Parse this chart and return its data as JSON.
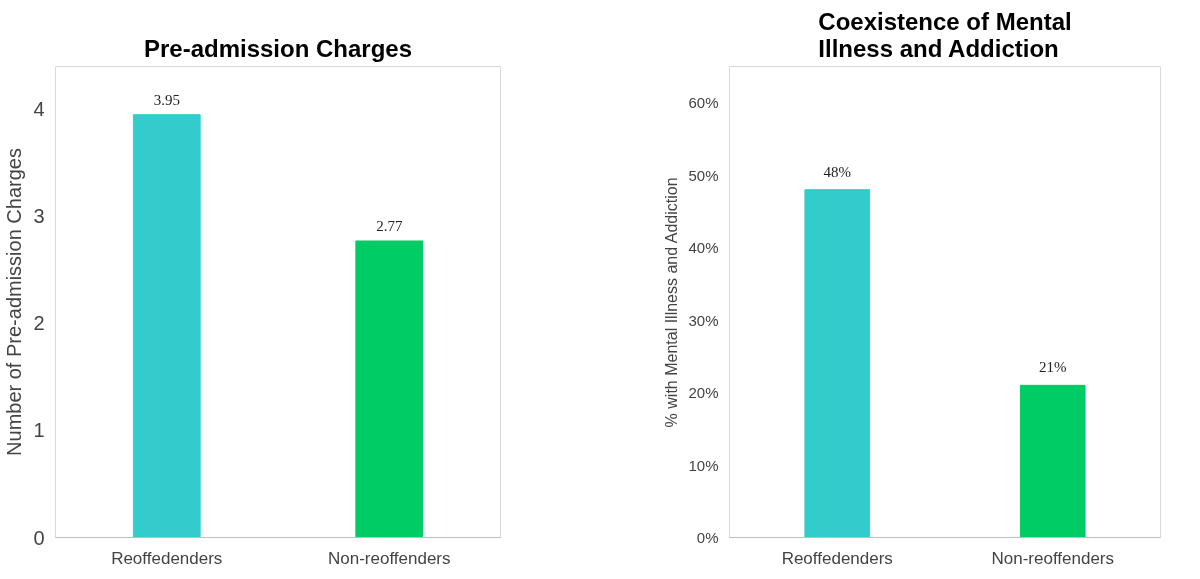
{
  "chart_data": [
    {
      "type": "bar",
      "title": "Pre-admission Charges",
      "ylabel": "Number of Pre-admission Charges",
      "categories": [
        "Reoffedenders",
        "Non-reoffenders"
      ],
      "series": [
        {
          "values": [
            3.95,
            2.77
          ],
          "colors": [
            "#33cccc",
            "#00cc66"
          ]
        }
      ],
      "ylim": [
        0,
        4.4
      ],
      "yticks": [
        0,
        1,
        2,
        3,
        4
      ],
      "grid": false,
      "data_labels": true
    },
    {
      "type": "bar",
      "title": "Coexistence of Mental Illness and Addiction",
      "ylabel": "% with Mental Illness and Addiction",
      "categories": [
        "Reoffedenders",
        "Non-reoffenders"
      ],
      "series": [
        {
          "values": [
            48,
            21
          ],
          "colors": [
            "#33cccc",
            "#00cc66"
          ],
          "value_labels": [
            "48%",
            "21%"
          ]
        }
      ],
      "ylim": [
        0,
        65
      ],
      "yticks": [
        {
          "value": 0,
          "label": "0%"
        },
        {
          "value": 10,
          "label": "10%"
        },
        {
          "value": 20,
          "label": "20%"
        },
        {
          "value": 30,
          "label": "30%"
        },
        {
          "value": 40,
          "label": "40%"
        },
        {
          "value": 50,
          "label": "50%"
        },
        {
          "value": 60,
          "label": "60%"
        }
      ],
      "grid": false
    }
  ]
}
